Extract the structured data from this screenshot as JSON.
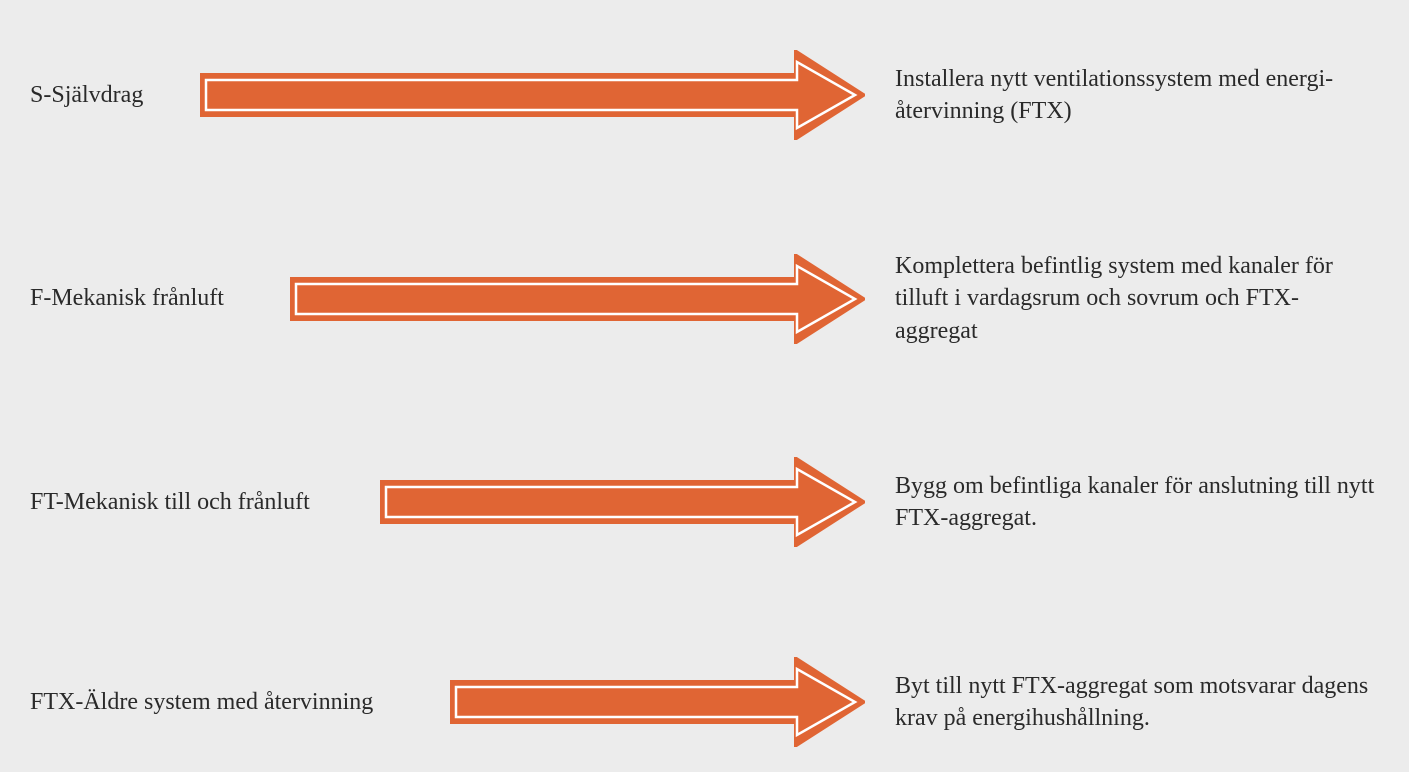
{
  "diagram": {
    "background_color": "#ececec",
    "text_color": "#2a2a2a",
    "font_family": "Georgia, serif",
    "font_size": 24,
    "row_gap": 110,
    "arrow": {
      "fill_color": "#e06534",
      "stroke_color": "#e06534",
      "inner_stroke_color": "#ffffff",
      "shaft_height": 42,
      "head_width": 70,
      "total_height": 90
    },
    "rows": [
      {
        "left": "S-Självdrag",
        "right": "Installera nytt ventilationssystem med energi-återvinning (FTX)",
        "left_width": 170,
        "arrow_width": 665
      },
      {
        "left": "F-Mekanisk frånluft",
        "right": "Komplettera befintlig system med kanaler för tilluft i vardagsrum och sovrum och FTX-aggregat",
        "left_width": 260,
        "arrow_width": 575
      },
      {
        "left": "FT-Mekanisk till och frånluft",
        "right": "Bygg om befintliga kanaler för anslutning till nytt FTX-aggregat.",
        "left_width": 350,
        "arrow_width": 485
      },
      {
        "left": "FTX-Äldre system med återvinning",
        "right": "Byt till nytt FTX-aggregat som motsvarar dagens krav på energihushållning.",
        "left_width": 420,
        "arrow_width": 415
      }
    ]
  }
}
